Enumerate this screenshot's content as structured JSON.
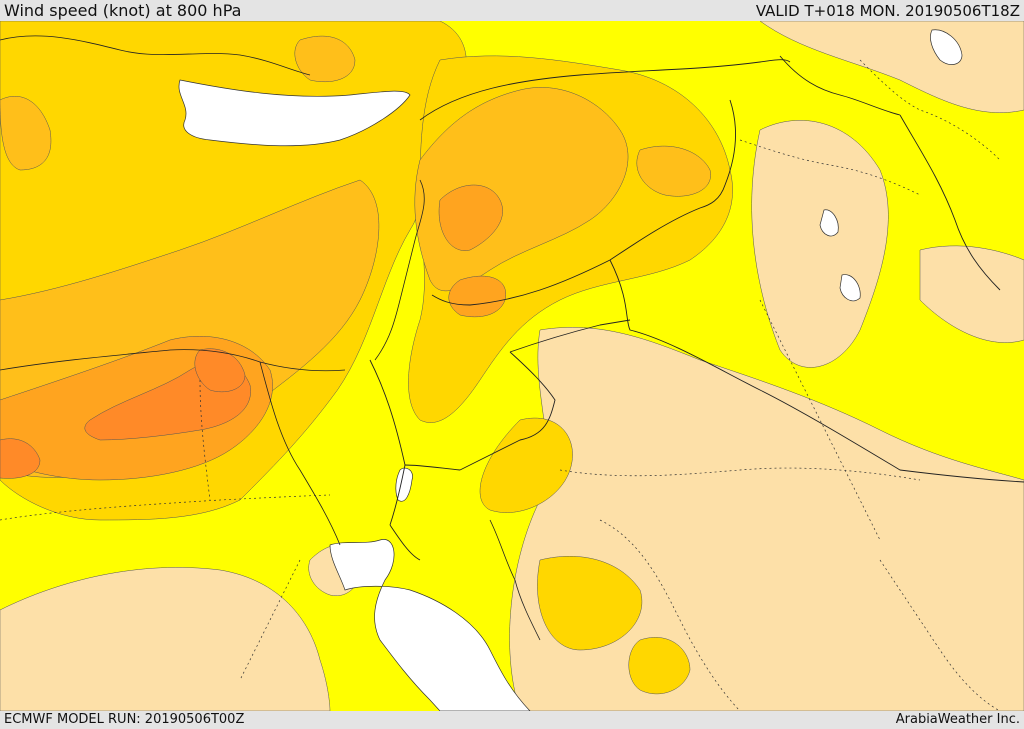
{
  "header": {
    "title": "Wind speed (knot) at 800 hPa",
    "valid_time": "VALID T+018 MON. 20190506T18Z"
  },
  "footer": {
    "model_run": "ECMWF MODEL RUN: 20190506T00Z",
    "credit": "ArabiaWeather Inc."
  },
  "map": {
    "colors": {
      "calm_tan": "#fde0a8",
      "light_yellow": "#ffff00",
      "gold": "#ffd700",
      "orange_light": "#ffbf1a",
      "orange": "#ffa41f",
      "orange_dark": "#ff8a28",
      "water": "#ffffff"
    },
    "features": [
      "wind-speed-shading",
      "country-borders",
      "coastlines",
      "internal-boundaries"
    ]
  }
}
